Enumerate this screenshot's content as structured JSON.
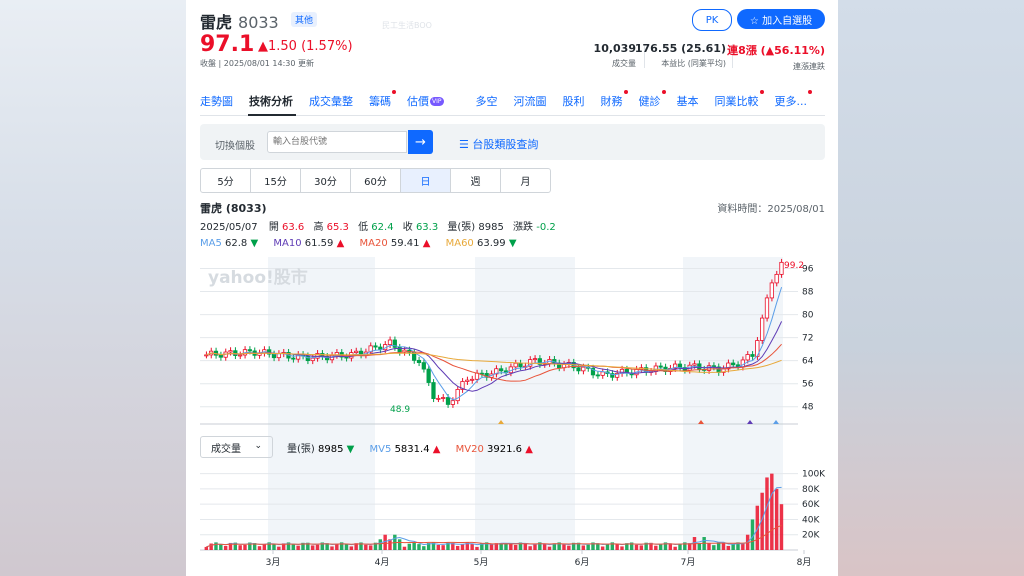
{
  "header": {
    "name": "雷虎",
    "code": "8033",
    "tag": "其他",
    "price": "97.1",
    "change": "▲1.50 (1.57%)",
    "updated": "收盤 | 2025/08/01 14:30 更新",
    "pk": "PK",
    "add": "☆ 加入自選股",
    "watermark": "民工生活BOO"
  },
  "stats": [
    {
      "value": "10,039",
      "label": "成交量"
    },
    {
      "value": "176.55 (25.61)",
      "label": "本益比 (同業平均)"
    },
    {
      "value": "連8漲 (▲56.11%)",
      "label": "連漲連跌"
    }
  ],
  "tabs": [
    "走勢圖",
    "技術分析",
    "成交彙整",
    "籌碼",
    "估價",
    "多空",
    "河流圖",
    "股利",
    "財務",
    "健診",
    "基本",
    "同業比較",
    "更多..."
  ],
  "vip": "VIP",
  "search": {
    "label": "切換個股",
    "placeholder": "輸入台股代號",
    "go": "→",
    "category": "☰ 台股類股查詢"
  },
  "periods": [
    "5分",
    "15分",
    "30分",
    "60分",
    "日",
    "週",
    "月"
  ],
  "chart": {
    "title": "雷虎 (8033)",
    "data_time": "資料時間：2025/08/01",
    "date": "2025/05/07",
    "ohlc": [
      {
        "k": "開",
        "v": "63.6"
      },
      {
        "k": "高",
        "v": "65.3"
      },
      {
        "k": "低",
        "v": "62.4"
      },
      {
        "k": "收",
        "v": "63.3"
      },
      {
        "k": "量(張)",
        "v": "8985"
      },
      {
        "k": "漲跌",
        "v": "-0.2"
      }
    ],
    "ma": [
      {
        "name": "MA5",
        "value": "62.8",
        "dir": "▼"
      },
      {
        "name": "MA10",
        "value": "61.59",
        "dir": "▲"
      },
      {
        "name": "MA20",
        "value": "59.41",
        "dir": "▲"
      },
      {
        "name": "MA60",
        "value": "63.99",
        "dir": "▼"
      }
    ],
    "logo": "yahoo!股市",
    "high_label": "99.2",
    "low_label": "48.9"
  },
  "volume": {
    "select": "成交量",
    "qty": {
      "k": "量(張)",
      "v": "8985",
      "dir": "▼"
    },
    "mv5": {
      "k": "MV5",
      "v": "5831.4",
      "dir": "▲"
    },
    "mv20": {
      "k": "MV20",
      "v": "3921.6",
      "dir": "▲"
    }
  },
  "colors": {
    "up": "#eb0f29",
    "down": "#00a04a",
    "ma5": "#5b9ee8",
    "ma10": "#5f3cb5",
    "ma20": "#e8543a",
    "ma60": "#e8a93a",
    "accent": "#0f69ff"
  },
  "chart_data": {
    "type": "candlestick",
    "x_ticks": [
      "3月",
      "4月",
      "5月",
      "6月",
      "7月",
      "8月"
    ],
    "price_axis": [
      96,
      88,
      80,
      72,
      64,
      56,
      48
    ],
    "volume_axis": [
      "100K",
      "80K",
      "60K",
      "40K",
      "20K"
    ],
    "price_range": [
      42,
      100
    ],
    "volume_range": [
      0,
      110000
    ],
    "grid": true
  }
}
